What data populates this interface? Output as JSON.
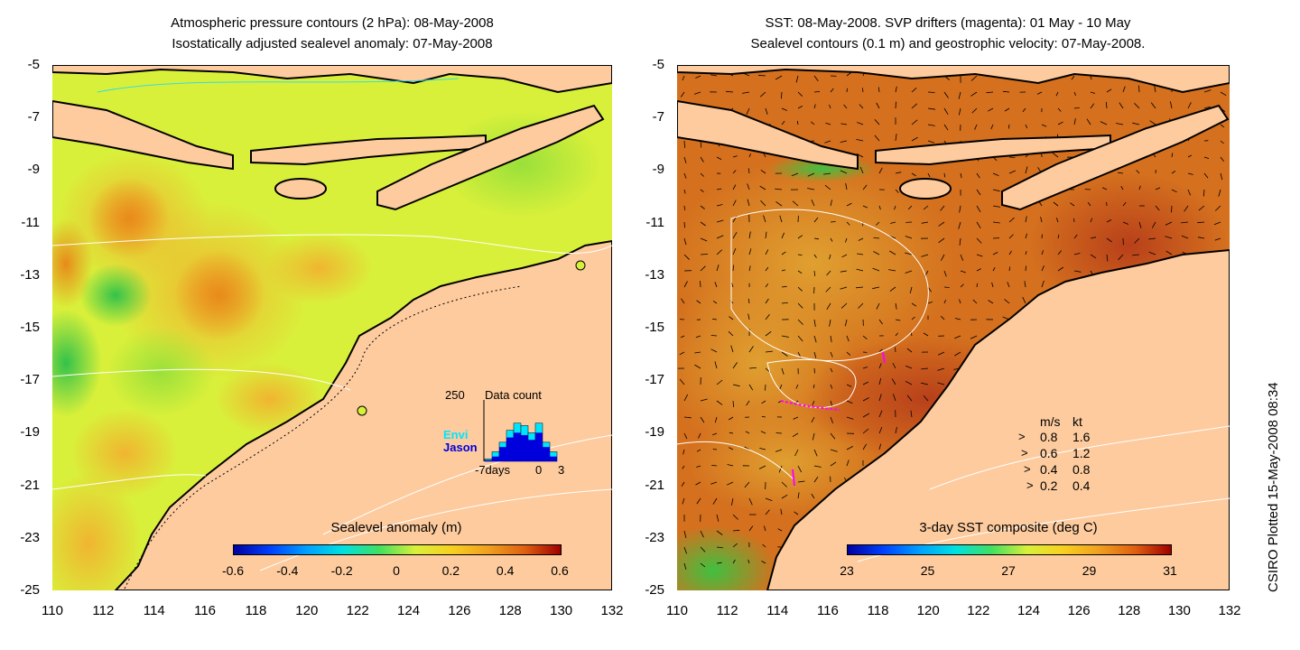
{
  "left_panel": {
    "title_line1": "Atmospheric pressure contours (2 hPa): 08-May-2008",
    "title_line2": "Isostatically adjusted sealevel anomaly: 07-May-2008",
    "colorbar": {
      "title": "Sealevel anomaly (m)",
      "labels": [
        "-0.6",
        "-0.4",
        "-0.2",
        "0",
        "0.2",
        "0.4",
        "0.6"
      ]
    },
    "inset": {
      "max_label": "250",
      "title": "Data count",
      "envi_label": "Envi",
      "jason_label": "Jason",
      "x_left": "-7days",
      "x_mid": "0",
      "x_right": "3",
      "envi_counts": [
        10,
        40,
        80,
        130,
        160,
        150,
        120,
        160,
        80,
        40
      ],
      "jason_counts": [
        5,
        20,
        60,
        100,
        120,
        110,
        90,
        120,
        60,
        20
      ],
      "colors": {
        "envi": "#00e5ff",
        "jason": "#0000dd"
      }
    }
  },
  "right_panel": {
    "title_line1": "SST: 08-May-2008. SVP drifters (magenta): 01 May - 10 May",
    "title_line2": "Sealevel contours (0.1 m) and geostrophic velocity: 07-May-2008.",
    "colorbar": {
      "title": "3-day SST composite (deg C)",
      "labels": [
        "23",
        "25",
        "27",
        "29",
        "31"
      ]
    },
    "velocity_legend": {
      "header_ms": "m/s",
      "header_kt": "kt",
      "rows": [
        {
          "ms": "0.8",
          "kt": "1.6"
        },
        {
          "ms": "0.6",
          "kt": "1.2"
        },
        {
          "ms": "0.4",
          "kt": "0.8"
        },
        {
          "ms": "0.2",
          "kt": "0.4"
        }
      ]
    }
  },
  "axes": {
    "y_ticks": [
      "-5",
      "-7",
      "-9",
      "-11",
      "-13",
      "-15",
      "-17",
      "-19",
      "-21",
      "-23",
      "-25"
    ],
    "x_ticks": [
      "110",
      "112",
      "114",
      "116",
      "118",
      "120",
      "122",
      "124",
      "126",
      "128",
      "130",
      "132"
    ],
    "lat_range": [
      -25,
      -5
    ],
    "lon_range": [
      110,
      132
    ]
  },
  "credit": "CSIRO Plotted 15-May-2008 08:34",
  "colors": {
    "land": "#fdcb9e",
    "sla_ocean": "#d9f03a",
    "sst_ocean": "#d4701e"
  }
}
